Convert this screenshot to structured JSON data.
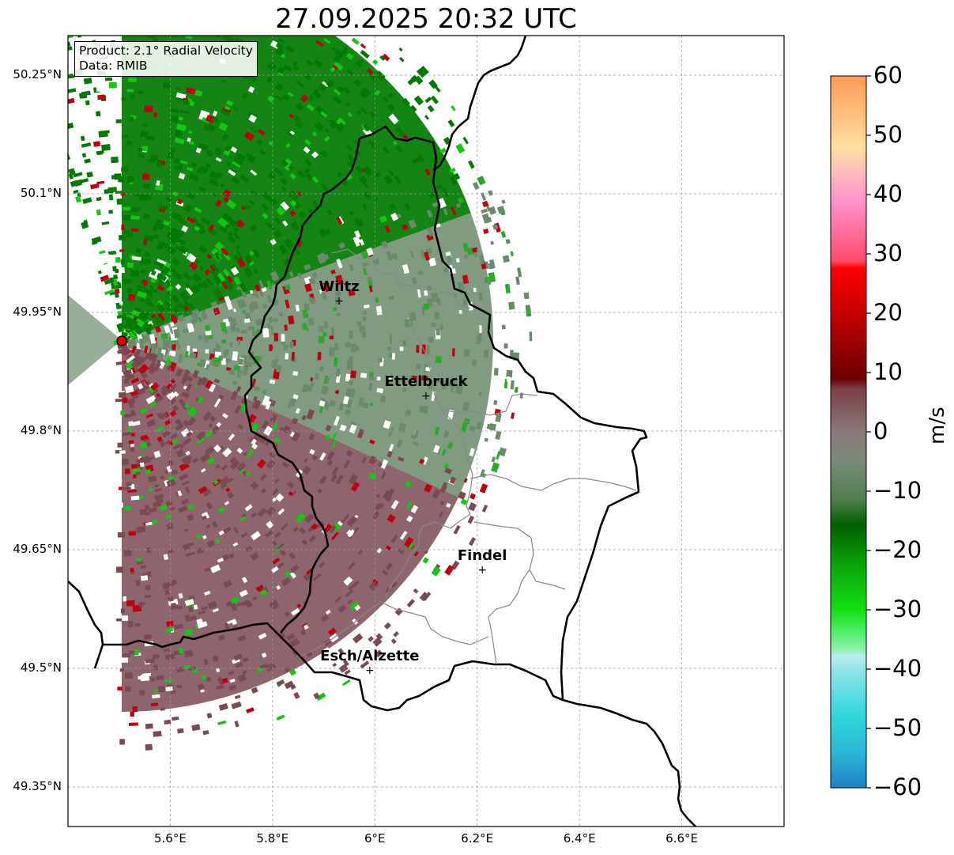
{
  "title": "27.09.2025 20:32 UTC",
  "info": {
    "product": "Product: 2.1° Radial Velocity",
    "data": "Data: RMIB"
  },
  "map": {
    "lon_range": [
      5.4,
      6.8
    ],
    "lat_range": [
      49.3,
      50.3
    ],
    "radar_site": {
      "lon": 5.505,
      "lat": 49.915
    },
    "gridlines": true,
    "lat_ticks": [
      {
        "value": 50.25,
        "label": "50.25°N"
      },
      {
        "value": 50.1,
        "label": "50.1°N"
      },
      {
        "value": 49.95,
        "label": "49.95°N"
      },
      {
        "value": 49.8,
        "label": "49.8°N"
      },
      {
        "value": 49.65,
        "label": "49.65°N"
      },
      {
        "value": 49.5,
        "label": "49.5°N"
      },
      {
        "value": 49.35,
        "label": "49.35°N"
      }
    ],
    "lon_ticks": [
      {
        "value": 5.6,
        "label": "5.6°E"
      },
      {
        "value": 5.8,
        "label": "5.8°E"
      },
      {
        "value": 6.0,
        "label": "6°E"
      },
      {
        "value": 6.2,
        "label": "6.2°E"
      },
      {
        "value": 6.4,
        "label": "6.4°E"
      },
      {
        "value": 6.6,
        "label": "6.6°E"
      }
    ],
    "cities": [
      {
        "name": "Wiltz",
        "lon": 5.93,
        "lat": 49.965
      },
      {
        "name": "Ettelbruck",
        "lon": 6.1,
        "lat": 49.845
      },
      {
        "name": "Findel",
        "lon": 6.21,
        "lat": 49.625
      },
      {
        "name": "Esch/Alzette",
        "lon": 5.99,
        "lat": 49.498
      }
    ]
  },
  "colorbar": {
    "label": "m/s",
    "range": [
      -60,
      60
    ],
    "ticks": [
      {
        "value": 60,
        "label": "60"
      },
      {
        "value": 50,
        "label": "50"
      },
      {
        "value": 40,
        "label": "40"
      },
      {
        "value": 30,
        "label": "30"
      },
      {
        "value": 20,
        "label": "20"
      },
      {
        "value": 10,
        "label": "10"
      },
      {
        "value": 0,
        "label": "0"
      },
      {
        "value": -10,
        "label": "−10"
      },
      {
        "value": -20,
        "label": "−20"
      },
      {
        "value": -30,
        "label": "−30"
      },
      {
        "value": -40,
        "label": "−40"
      },
      {
        "value": -50,
        "label": "−50"
      },
      {
        "value": -60,
        "label": "−60"
      }
    ],
    "colors": {
      "blue_low": "#1f7fc6",
      "cyan": "#2ed6dc",
      "light_cyan": "#b8eef0",
      "light_green": "#8ff0a8",
      "bright_green": "#12d812",
      "dark_green": "#006400",
      "grey_green": "#5a8a5a",
      "grey": "#8a7a7a",
      "maroon_grey": "#7a3a45",
      "dark_red": "#7a0000",
      "red": "#ff0000",
      "pink": "#ff7fa8",
      "light_pink": "#ffc0c8",
      "orange_high": "#ff9a55"
    },
    "velocity_colors": {
      "inbound": "#007a00",
      "near_zero": "#6b8a6b",
      "outbound": "#7a4a52",
      "strong_outbound": "#c00010"
    }
  }
}
